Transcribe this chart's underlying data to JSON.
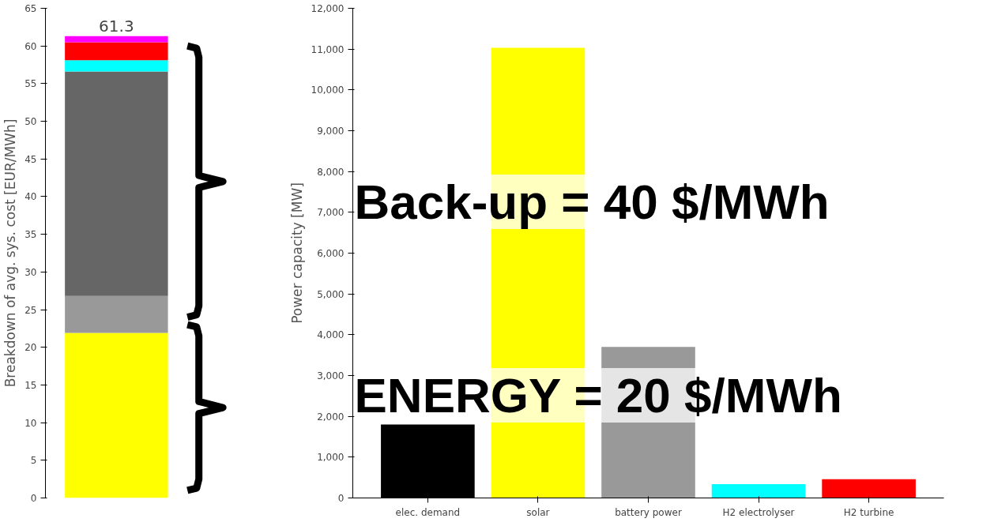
{
  "chart_data": [
    {
      "type": "bar",
      "stacked": true,
      "categories": [
        null
      ],
      "ylabel": "Breakdown of avg. sys. cost [EUR/MWh]",
      "ylim": [
        0,
        65
      ],
      "yticks": [
        0,
        5,
        10,
        15,
        20,
        25,
        30,
        35,
        40,
        45,
        50,
        55,
        60,
        65
      ],
      "grid": false,
      "totals": [
        "61.3"
      ],
      "series": [
        {
          "color": "#ffff00",
          "values": [
            21.9
          ]
        },
        {
          "color": "#999999",
          "values": [
            4.9
          ]
        },
        {
          "color": "#666666",
          "values": [
            29.8
          ]
        },
        {
          "color": "#00ffff",
          "values": [
            1.5
          ]
        },
        {
          "color": "#ff0000",
          "values": [
            2.4
          ]
        },
        {
          "color": "#ff00ff",
          "values": [
            0.8
          ]
        }
      ]
    },
    {
      "type": "bar",
      "categories": [
        "elec. demand",
        "solar",
        "battery power",
        "H2 electrolyser",
        "H2 turbine"
      ],
      "values": [
        1800,
        11030,
        3700,
        340,
        460
      ],
      "colors": [
        "#000000",
        "#ffff00",
        "#999999",
        "#00ffff",
        "#ff0000"
      ],
      "ylabel": "Power capacity [MW]",
      "ylim": [
        0,
        12000
      ],
      "yticks": [
        0,
        {
          "value": 1000,
          "label": "1,000"
        },
        {
          "value": 2000,
          "label": "2,000"
        },
        {
          "value": 3000,
          "label": "3,000"
        },
        {
          "value": 4000,
          "label": "4,000"
        },
        {
          "value": 5000,
          "label": "5,000"
        },
        {
          "value": 6000,
          "label": "6,000"
        },
        {
          "value": 7000,
          "label": "7,000"
        },
        {
          "value": 8000,
          "label": "8,000"
        },
        {
          "value": 9000,
          "label": "9,000"
        },
        {
          "value": 10000,
          "label": "10,000"
        },
        {
          "value": 11000,
          "label": "11,000"
        },
        {
          "value": 12000,
          "label": "12,000"
        }
      ],
      "grid": false,
      "annotations": [
        "Back-up = 40 $/MWh",
        "ENERGY = 20 $/MWh"
      ]
    }
  ]
}
